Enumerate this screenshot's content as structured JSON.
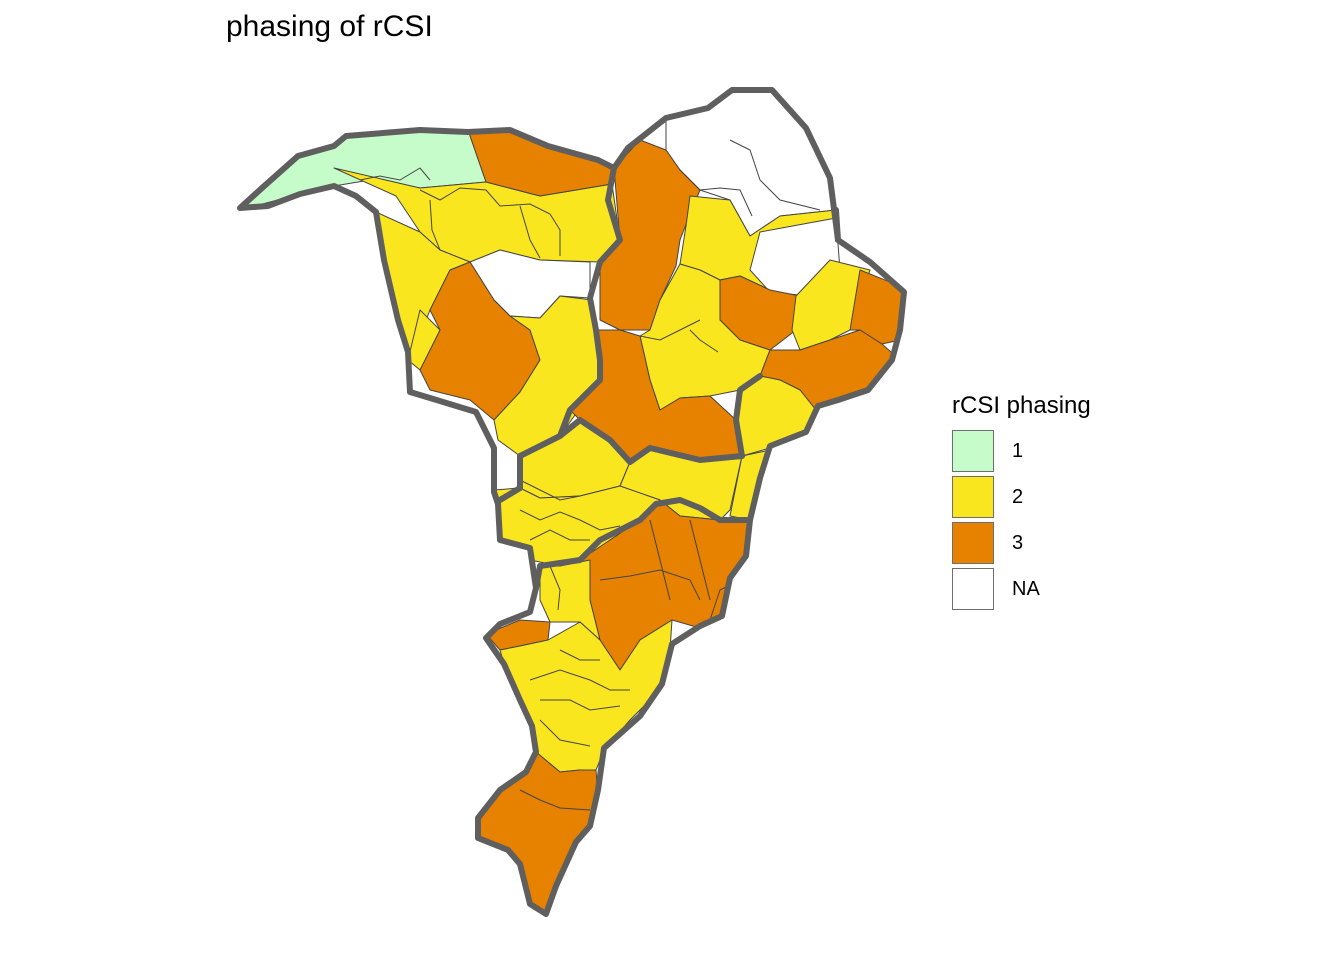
{
  "title": "phasing of rCSI",
  "legend": {
    "title": "rCSI phasing",
    "items": [
      {
        "label": "1",
        "color": "#c6fcca"
      },
      {
        "label": "2",
        "color": "#fae61e"
      },
      {
        "label": "3",
        "color": "#e78200"
      },
      {
        "label": "NA",
        "color": "#ffffff"
      }
    ]
  },
  "colors": {
    "phase_1": "#c6fcca",
    "phase_2": "#fae61e",
    "phase_3": "#e78200",
    "na": "#ffffff",
    "region_border": "#5f5f5f",
    "district_border": "#444444"
  }
}
